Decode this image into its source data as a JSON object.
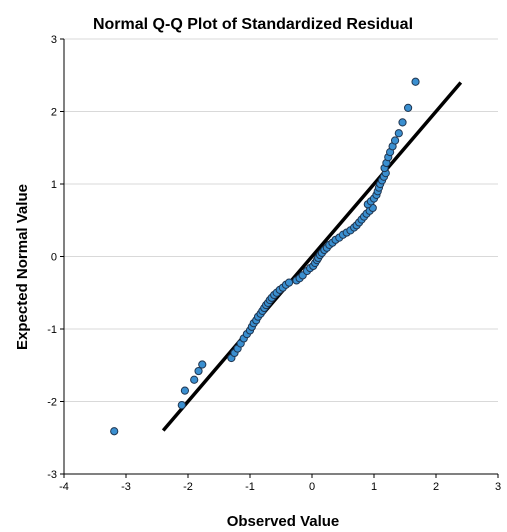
{
  "chart_data": {
    "type": "scatter",
    "title": "Normal Q-Q Plot of Standardized Residual",
    "xlabel": "Observed Value",
    "ylabel": "Expected Normal Value",
    "xlim": [
      -4,
      3
    ],
    "ylim": [
      -3,
      3
    ],
    "xticks": [
      "-4",
      "-3",
      "-2",
      "-1",
      "0",
      "1",
      "2",
      "3"
    ],
    "yticks": [
      "-3",
      "-2",
      "-1",
      "0",
      "1",
      "2",
      "3"
    ],
    "grid": "horizontal",
    "point_color": "#3a8fd0",
    "point_edge_color": "#1f3550",
    "line_color": "#000000",
    "reference_line": {
      "x": [
        -2.4,
        2.4
      ],
      "y": [
        -2.4,
        2.4
      ]
    },
    "points": [
      {
        "x": -3.19,
        "y": -2.41
      },
      {
        "x": -2.1,
        "y": -2.05
      },
      {
        "x": -2.05,
        "y": -1.85
      },
      {
        "x": -1.9,
        "y": -1.7
      },
      {
        "x": -1.83,
        "y": -1.58
      },
      {
        "x": -1.77,
        "y": -1.49
      },
      {
        "x": -1.3,
        "y": -1.4
      },
      {
        "x": -1.25,
        "y": -1.33
      },
      {
        "x": -1.2,
        "y": -1.27
      },
      {
        "x": -1.15,
        "y": -1.2
      },
      {
        "x": -1.1,
        "y": -1.13
      },
      {
        "x": -1.05,
        "y": -1.07
      },
      {
        "x": -1.0,
        "y": -1.02
      },
      {
        "x": -0.97,
        "y": -0.97
      },
      {
        "x": -0.94,
        "y": -0.92
      },
      {
        "x": -0.9,
        "y": -0.88
      },
      {
        "x": -0.87,
        "y": -0.83
      },
      {
        "x": -0.83,
        "y": -0.79
      },
      {
        "x": -0.8,
        "y": -0.75
      },
      {
        "x": -0.77,
        "y": -0.71
      },
      {
        "x": -0.74,
        "y": -0.67
      },
      {
        "x": -0.71,
        "y": -0.64
      },
      {
        "x": -0.68,
        "y": -0.6
      },
      {
        "x": -0.65,
        "y": -0.57
      },
      {
        "x": -0.61,
        "y": -0.53
      },
      {
        "x": -0.57,
        "y": -0.5
      },
      {
        "x": -0.52,
        "y": -0.46
      },
      {
        "x": -0.47,
        "y": -0.43
      },
      {
        "x": -0.42,
        "y": -0.39
      },
      {
        "x": -0.37,
        "y": -0.36
      },
      {
        "x": -0.25,
        "y": -0.33
      },
      {
        "x": -0.2,
        "y": -0.3
      },
      {
        "x": -0.15,
        "y": -0.26
      },
      {
        "x": -0.08,
        "y": -0.2
      },
      {
        "x": -0.03,
        "y": -0.16
      },
      {
        "x": 0.02,
        "y": -0.13
      },
      {
        "x": 0.05,
        "y": -0.09
      },
      {
        "x": 0.08,
        "y": -0.05
      },
      {
        "x": 0.1,
        "y": -0.02
      },
      {
        "x": 0.13,
        "y": 0.02
      },
      {
        "x": 0.16,
        "y": 0.05
      },
      {
        "x": 0.2,
        "y": 0.09
      },
      {
        "x": 0.24,
        "y": 0.12
      },
      {
        "x": 0.28,
        "y": 0.16
      },
      {
        "x": 0.33,
        "y": 0.19
      },
      {
        "x": 0.38,
        "y": 0.23
      },
      {
        "x": 0.44,
        "y": 0.26
      },
      {
        "x": 0.5,
        "y": 0.3
      },
      {
        "x": 0.56,
        "y": 0.33
      },
      {
        "x": 0.62,
        "y": 0.36
      },
      {
        "x": 0.68,
        "y": 0.4
      },
      {
        "x": 0.72,
        "y": 0.43
      },
      {
        "x": 0.76,
        "y": 0.47
      },
      {
        "x": 0.8,
        "y": 0.51
      },
      {
        "x": 0.84,
        "y": 0.55
      },
      {
        "x": 0.88,
        "y": 0.59
      },
      {
        "x": 0.93,
        "y": 0.63
      },
      {
        "x": 0.98,
        "y": 0.67
      },
      {
        "x": 0.9,
        "y": 0.72
      },
      {
        "x": 0.95,
        "y": 0.76
      },
      {
        "x": 1.0,
        "y": 0.8
      },
      {
        "x": 1.04,
        "y": 0.85
      },
      {
        "x": 1.06,
        "y": 0.9
      },
      {
        "x": 1.08,
        "y": 0.95
      },
      {
        "x": 1.1,
        "y": 1.0
      },
      {
        "x": 1.13,
        "y": 1.05
      },
      {
        "x": 1.16,
        "y": 1.1
      },
      {
        "x": 1.19,
        "y": 1.15
      },
      {
        "x": 1.17,
        "y": 1.22
      },
      {
        "x": 1.2,
        "y": 1.29
      },
      {
        "x": 1.23,
        "y": 1.37
      },
      {
        "x": 1.26,
        "y": 1.44
      },
      {
        "x": 1.3,
        "y": 1.52
      },
      {
        "x": 1.34,
        "y": 1.6
      },
      {
        "x": 1.4,
        "y": 1.7
      },
      {
        "x": 1.46,
        "y": 1.85
      },
      {
        "x": 1.55,
        "y": 2.05
      },
      {
        "x": 1.67,
        "y": 2.41
      }
    ]
  }
}
